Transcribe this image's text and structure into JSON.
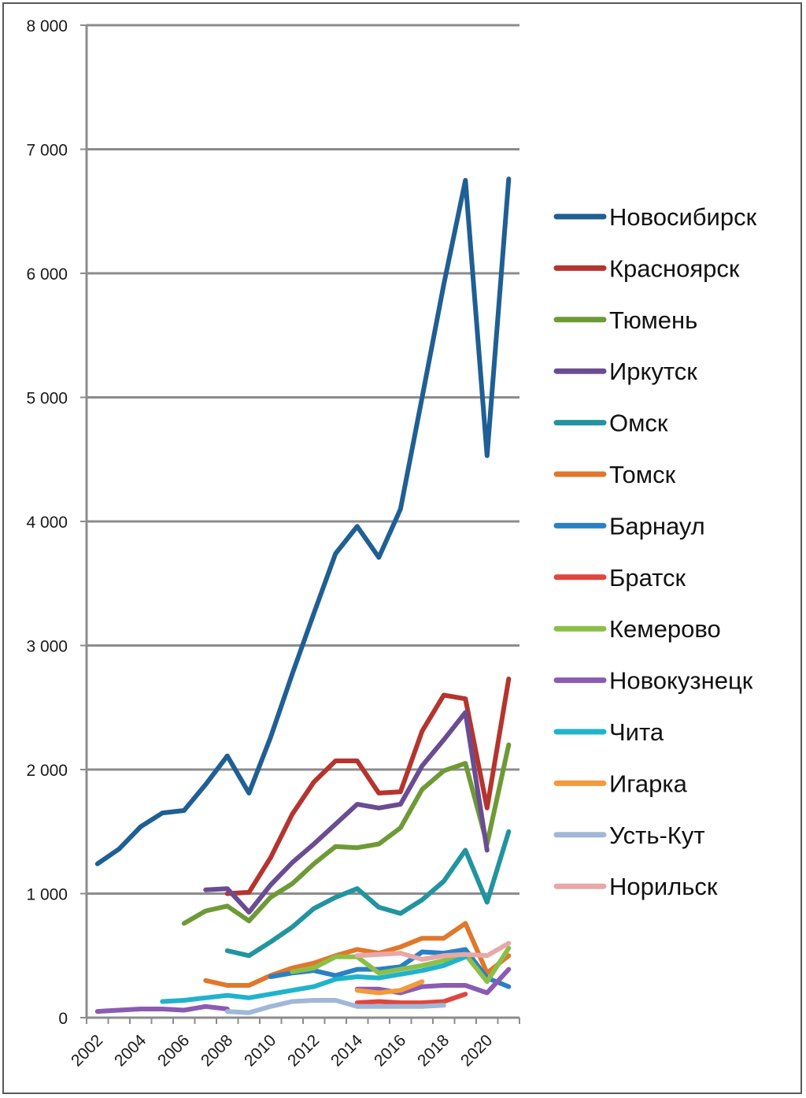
{
  "chart_data": {
    "type": "line",
    "title": "",
    "xlabel": "",
    "ylabel": "",
    "x": [
      2002,
      2003,
      2004,
      2005,
      2006,
      2007,
      2008,
      2009,
      2010,
      2011,
      2012,
      2013,
      2014,
      2015,
      2016,
      2017,
      2018,
      2019,
      2020,
      2021
    ],
    "x_tick_labels": [
      "2002",
      "2004",
      "2006",
      "2008",
      "2010",
      "2012",
      "2014",
      "2016",
      "2018",
      "2020"
    ],
    "x_tick_values": [
      2002,
      2004,
      2006,
      2008,
      2010,
      2012,
      2014,
      2016,
      2018,
      2020
    ],
    "ylim": [
      0,
      8000
    ],
    "y_ticks": [
      {
        "value": 0,
        "label": "0"
      },
      {
        "value": 1000,
        "label": "1 000"
      },
      {
        "value": 2000,
        "label": "2 000"
      },
      {
        "value": 3000,
        "label": "3 000"
      },
      {
        "value": 4000,
        "label": "4 000"
      },
      {
        "value": 5000,
        "label": "5 000"
      },
      {
        "value": 6000,
        "label": "6 000"
      },
      {
        "value": 7000,
        "label": "7 000"
      },
      {
        "value": 8000,
        "label": "8 000"
      }
    ],
    "grid": true,
    "legend_position": "right",
    "series": [
      {
        "name": "Новосибирск",
        "color": "#1f5f94",
        "values": [
          1240,
          1360,
          1540,
          1650,
          1670,
          1880,
          2110,
          1810,
          2260,
          2770,
          3260,
          3740,
          3960,
          3710,
          4100,
          5000,
          5910,
          6750,
          4530,
          6760
        ]
      },
      {
        "name": "Красноярск",
        "color": "#b5342e",
        "values": [
          null,
          null,
          null,
          null,
          null,
          null,
          1000,
          1010,
          1290,
          1640,
          1900,
          2070,
          2070,
          1810,
          1820,
          2310,
          2600,
          2570,
          1690,
          2730
        ]
      },
      {
        "name": "Тюмень",
        "color": "#6e9a36",
        "values": [
          null,
          null,
          null,
          null,
          760,
          860,
          900,
          780,
          970,
          1080,
          1240,
          1380,
          1370,
          1400,
          1530,
          1840,
          1990,
          2050,
          1400,
          2200
        ]
      },
      {
        "name": "Иркутск",
        "color": "#6a4c93",
        "values": [
          null,
          null,
          null,
          null,
          null,
          1030,
          1040,
          850,
          1070,
          1250,
          1400,
          1560,
          1720,
          1690,
          1720,
          2030,
          2240,
          2460,
          1350,
          null
        ]
      },
      {
        "name": "Омск",
        "color": "#21949f",
        "values": [
          null,
          null,
          null,
          null,
          null,
          null,
          540,
          500,
          610,
          730,
          880,
          970,
          1040,
          890,
          840,
          950,
          1100,
          1350,
          930,
          1500
        ]
      },
      {
        "name": "Томск",
        "color": "#e0772b",
        "values": [
          null,
          null,
          null,
          null,
          null,
          300,
          260,
          260,
          340,
          400,
          440,
          500,
          550,
          520,
          570,
          640,
          640,
          760,
          360,
          500
        ]
      },
      {
        "name": "Барнаул",
        "color": "#2a80c4",
        "values": [
          null,
          null,
          null,
          null,
          null,
          null,
          null,
          null,
          330,
          360,
          380,
          340,
          390,
          390,
          410,
          530,
          520,
          550,
          320,
          250
        ]
      },
      {
        "name": "Братск",
        "color": "#e0463f",
        "values": [
          null,
          null,
          null,
          null,
          null,
          null,
          null,
          null,
          null,
          null,
          null,
          null,
          120,
          130,
          120,
          120,
          130,
          190,
          null,
          null
        ]
      },
      {
        "name": "Кемерово",
        "color": "#8cbf48",
        "values": [
          null,
          null,
          null,
          null,
          null,
          null,
          null,
          null,
          null,
          370,
          400,
          490,
          490,
          360,
          390,
          420,
          460,
          510,
          290,
          560
        ]
      },
      {
        "name": "Новокузнецк",
        "color": "#8b5bb3",
        "values": [
          50,
          60,
          70,
          70,
          60,
          90,
          70,
          null,
          null,
          null,
          null,
          null,
          230,
          230,
          200,
          250,
          260,
          260,
          200,
          390
        ]
      },
      {
        "name": "Чита",
        "color": "#1fb3cc",
        "values": [
          null,
          null,
          null,
          130,
          140,
          160,
          180,
          160,
          190,
          220,
          250,
          310,
          330,
          320,
          350,
          380,
          420,
          490,
          null,
          null
        ]
      },
      {
        "name": "Игарка",
        "color": "#f39a3a",
        "values": [
          null,
          null,
          null,
          null,
          null,
          null,
          null,
          null,
          null,
          null,
          null,
          null,
          220,
          200,
          220,
          290,
          null,
          null,
          null,
          null
        ]
      },
      {
        "name": "Усть-Кут",
        "color": "#9fb8d8",
        "values": [
          null,
          null,
          null,
          null,
          null,
          null,
          50,
          40,
          90,
          130,
          140,
          140,
          90,
          90,
          90,
          90,
          100,
          null,
          null,
          null
        ]
      },
      {
        "name": "Норильск",
        "color": "#e8a8a8",
        "values": [
          null,
          null,
          null,
          null,
          null,
          null,
          null,
          null,
          null,
          null,
          null,
          null,
          500,
          510,
          520,
          470,
          500,
          510,
          500,
          600
        ]
      }
    ]
  }
}
